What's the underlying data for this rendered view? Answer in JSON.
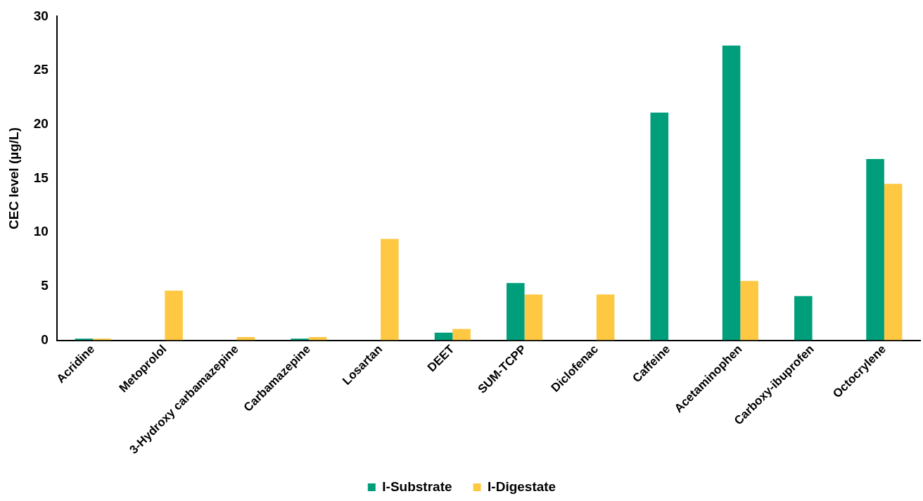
{
  "chart_data": {
    "type": "bar",
    "ylabel": "CEC level (µg/L)",
    "categories": [
      "Acridine",
      "Metoprolol",
      "3-Hydroxy carbamazepine",
      "Carbamazepine",
      "Losartan",
      "DEET",
      "SUM-TCPP",
      "Diclofenac",
      "Caffeine",
      "Acetaminophen",
      "Carboxy-ibuprofen",
      "Octocrylene"
    ],
    "series": [
      {
        "name": "I-Substrate",
        "color": "#019e7c",
        "values": [
          0.15,
          0,
          0,
          0.15,
          0,
          0.7,
          5.3,
          0,
          21.1,
          27.3,
          4.1,
          16.8
        ]
      },
      {
        "name": "I-Digestate",
        "color": "#fec843",
        "values": [
          0.15,
          4.6,
          0.3,
          0.3,
          9.4,
          1.05,
          4.25,
          4.25,
          0,
          5.5,
          0,
          14.5
        ]
      }
    ],
    "ylim": [
      0,
      30
    ],
    "yticks": [
      0,
      5,
      10,
      15,
      20,
      25,
      30
    ],
    "grid": false,
    "legend": "bottom"
  }
}
